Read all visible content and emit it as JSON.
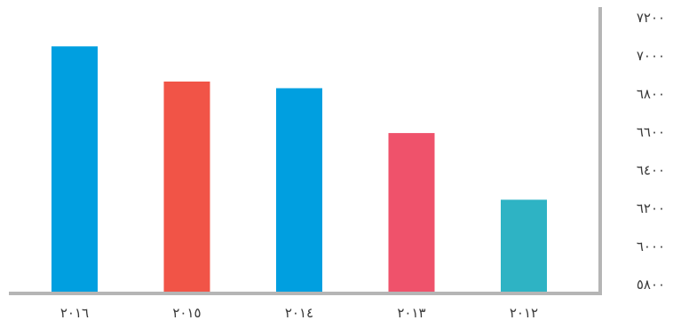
{
  "chart_data": {
    "type": "bar",
    "title": "",
    "xlabel": "",
    "ylabel": "",
    "y_axis_side": "right",
    "ylim": [
      5800,
      7200
    ],
    "yticks": [
      5800,
      6000,
      6200,
      6400,
      6600,
      6800,
      7000,
      7200
    ],
    "ytick_labels": [
      "٥٨٠٠",
      "٦٠٠٠",
      "٦٢٠٠",
      "٦٤٠٠",
      "٦٦٠٠",
      "٦٨٠٠",
      "٧٠٠٠",
      "٧٢٠٠"
    ],
    "categories": [
      "٢٠١٦",
      "٢٠١٥",
      "٢٠١٤",
      "٢٠١٣",
      "٢٠١٢"
    ],
    "values": [
      7050,
      6865,
      6830,
      6595,
      6245
    ],
    "colors": [
      "#009fe0",
      "#f15447",
      "#009fe0",
      "#ef526b",
      "#2eb3c4"
    ],
    "axis_color": "#b5b5b5",
    "grid": false,
    "legend": "none"
  }
}
